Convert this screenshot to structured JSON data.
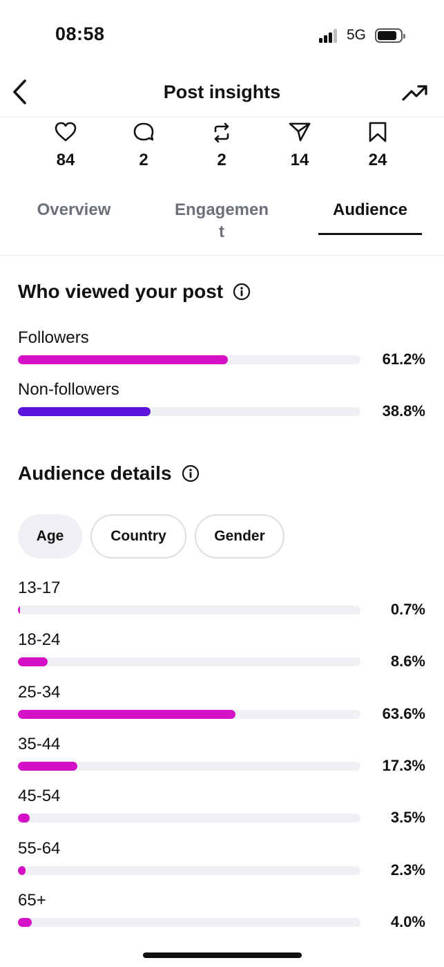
{
  "status_bar": {
    "time": "08:58",
    "network": "5G"
  },
  "nav": {
    "title": "Post insights"
  },
  "stats": [
    {
      "icon": "heart-icon",
      "value": "84"
    },
    {
      "icon": "reply-icon",
      "value": "2"
    },
    {
      "icon": "repost-icon",
      "value": "2"
    },
    {
      "icon": "share-icon",
      "value": "14"
    },
    {
      "icon": "bookmark-icon",
      "value": "24"
    }
  ],
  "tabs": [
    {
      "label": "Overview",
      "active": false
    },
    {
      "label": "Engagemen\nt",
      "active": false
    },
    {
      "label": "Audience",
      "active": true
    }
  ],
  "viewers": {
    "title": "Who viewed your post",
    "rows": [
      {
        "label": "Followers",
        "percent_text": "61.2%",
        "value": 61.2,
        "color": "#d411c7"
      },
      {
        "label": "Non-followers",
        "percent_text": "38.8%",
        "value": 38.8,
        "color": "#5b14d9"
      }
    ]
  },
  "audience": {
    "title": "Audience details",
    "chips": [
      "Age",
      "Country",
      "Gender"
    ],
    "selected_chip": "Age",
    "bar_color": "#d411c7",
    "track_color": "#eff0f3",
    "rows": [
      {
        "label": "13-17",
        "percent_text": "0.7%",
        "value": 0.7
      },
      {
        "label": "18-24",
        "percent_text": "8.6%",
        "value": 8.6
      },
      {
        "label": "25-34",
        "percent_text": "63.6%",
        "value": 63.6
      },
      {
        "label": "35-44",
        "percent_text": "17.3%",
        "value": 17.3
      },
      {
        "label": "45-54",
        "percent_text": "3.5%",
        "value": 3.5
      },
      {
        "label": "55-64",
        "percent_text": "2.3%",
        "value": 2.3
      },
      {
        "label": "65+",
        "percent_text": "4.0%",
        "value": 4.0
      }
    ]
  }
}
